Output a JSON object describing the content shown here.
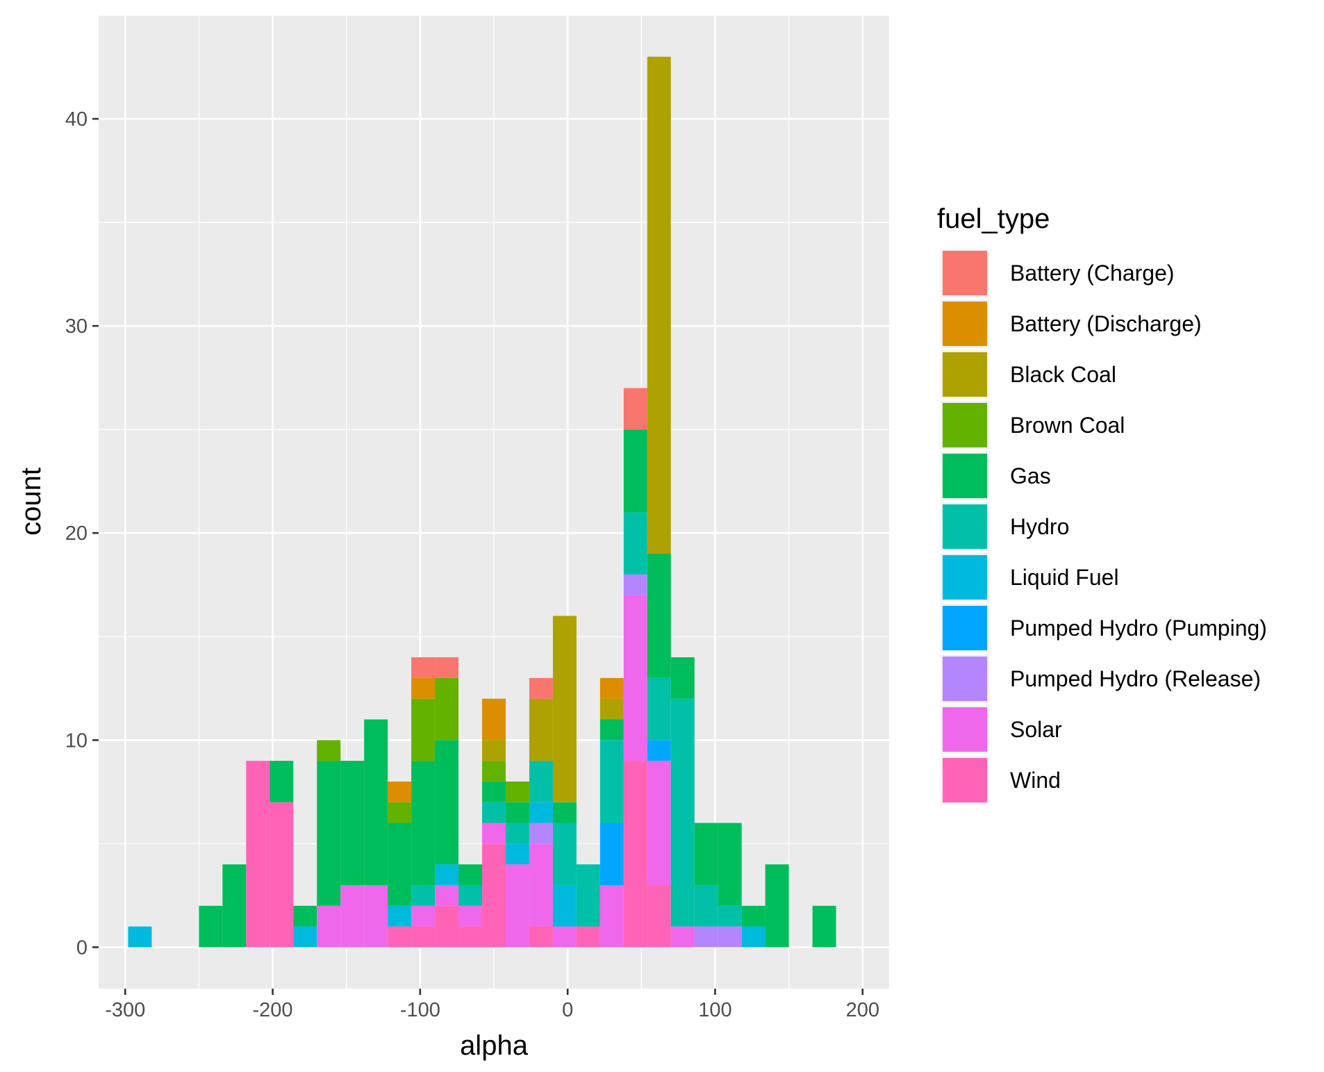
{
  "chart_data": {
    "type": "bar",
    "stacked": true,
    "xlabel": "alpha",
    "ylabel": "count",
    "xlim": [
      -318,
      218
    ],
    "ylim": [
      -2,
      45
    ],
    "x_ticks": [
      -300,
      -200,
      -100,
      0,
      100,
      200
    ],
    "x_tick_labels": [
      "-300",
      "-200",
      "-100",
      "0",
      "100",
      "200"
    ],
    "y_ticks": [
      0,
      10,
      20,
      30,
      40
    ],
    "y_tick_labels": [
      "0",
      "10",
      "20",
      "30",
      "40"
    ],
    "grid": true,
    "legend_title": "fuel_type",
    "legend_position": "right",
    "bin_width": 16,
    "x": [
      -290,
      -242,
      -226,
      -210,
      -194,
      -178,
      -162,
      -146,
      -130,
      -114,
      -98,
      -82,
      -66,
      -50,
      -34,
      -18,
      -2,
      14,
      30,
      46,
      62,
      78,
      94,
      110,
      126,
      142,
      174
    ],
    "series": [
      {
        "name": "Battery (Charge)",
        "color": "#F8766D",
        "values": [
          0,
          0,
          0,
          0,
          0,
          0,
          0,
          0,
          0,
          0,
          1,
          1,
          0,
          0,
          0,
          1,
          0,
          0,
          0,
          2,
          0,
          0,
          0,
          0,
          0,
          0,
          0
        ]
      },
      {
        "name": "Battery (Discharge)",
        "color": "#DB8E00",
        "values": [
          0,
          0,
          0,
          0,
          0,
          0,
          0,
          0,
          0,
          1,
          1,
          0,
          0,
          2,
          0,
          0,
          0,
          0,
          1,
          0,
          0,
          0,
          0,
          0,
          0,
          0,
          0
        ]
      },
      {
        "name": "Black Coal",
        "color": "#AEA200",
        "values": [
          0,
          0,
          0,
          0,
          0,
          0,
          0,
          0,
          0,
          0,
          0,
          0,
          0,
          1,
          0,
          3,
          9,
          0,
          1,
          0,
          24,
          0,
          0,
          0,
          0,
          0,
          0
        ]
      },
      {
        "name": "Brown Coal",
        "color": "#64B200",
        "values": [
          0,
          0,
          0,
          0,
          0,
          0,
          1,
          0,
          0,
          1,
          3,
          3,
          0,
          1,
          1,
          0,
          0,
          0,
          0,
          0,
          0,
          0,
          0,
          0,
          0,
          0,
          0
        ]
      },
      {
        "name": "Gas",
        "color": "#00BD5C",
        "values": [
          0,
          2,
          4,
          0,
          2,
          1,
          7,
          6,
          8,
          4,
          6,
          6,
          1,
          1,
          1,
          0,
          1,
          0,
          1,
          4,
          6,
          2,
          3,
          4,
          1,
          4,
          2
        ]
      },
      {
        "name": "Hydro",
        "color": "#00C1A7",
        "values": [
          0,
          0,
          0,
          0,
          0,
          0,
          0,
          0,
          0,
          0,
          1,
          0,
          1,
          1,
          1,
          2,
          3,
          3,
          4,
          3,
          3,
          11,
          2,
          1,
          0,
          0,
          0
        ]
      },
      {
        "name": "Liquid Fuel",
        "color": "#00BADE",
        "values": [
          1,
          0,
          0,
          0,
          0,
          1,
          0,
          0,
          0,
          1,
          0,
          1,
          0,
          0,
          1,
          1,
          2,
          0,
          0,
          0,
          0,
          0,
          0,
          0,
          1,
          0,
          0
        ]
      },
      {
        "name": "Pumped Hydro (Pumping)",
        "color": "#00A6FF",
        "values": [
          0,
          0,
          0,
          0,
          0,
          0,
          0,
          0,
          0,
          0,
          0,
          0,
          0,
          0,
          0,
          0,
          0,
          0,
          3,
          0,
          1,
          0,
          0,
          0,
          0,
          0,
          0
        ]
      },
      {
        "name": "Pumped Hydro (Release)",
        "color": "#B385FF",
        "values": [
          0,
          0,
          0,
          0,
          0,
          0,
          0,
          0,
          0,
          0,
          0,
          0,
          0,
          0,
          0,
          1,
          0,
          0,
          0,
          1,
          0,
          0,
          1,
          1,
          0,
          0,
          0
        ]
      },
      {
        "name": "Solar",
        "color": "#EF67EB",
        "values": [
          0,
          0,
          0,
          0,
          0,
          0,
          2,
          3,
          3,
          0,
          1,
          1,
          1,
          1,
          4,
          4,
          1,
          0,
          3,
          8,
          6,
          1,
          0,
          0,
          0,
          0,
          0
        ]
      },
      {
        "name": "Wind",
        "color": "#FF63B6",
        "values": [
          0,
          0,
          0,
          9,
          7,
          0,
          0,
          0,
          0,
          1,
          1,
          2,
          1,
          5,
          0,
          1,
          0,
          1,
          0,
          9,
          3,
          0,
          0,
          0,
          0,
          0,
          0
        ]
      }
    ]
  }
}
